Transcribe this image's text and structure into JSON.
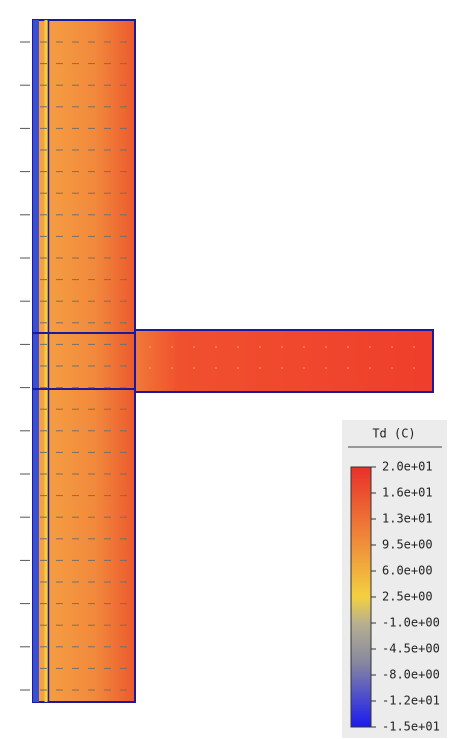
{
  "legend": {
    "title": "Td (C)",
    "labels": [
      "2.0e+01",
      "1.6e+01",
      "1.3e+01",
      "9.5e+00",
      "6.0e+00",
      "2.5e+00",
      "-1.0e+00",
      "-4.5e+00",
      "-8.0e+00",
      "-1.2e+01",
      "-1.5e+01"
    ]
  }
}
